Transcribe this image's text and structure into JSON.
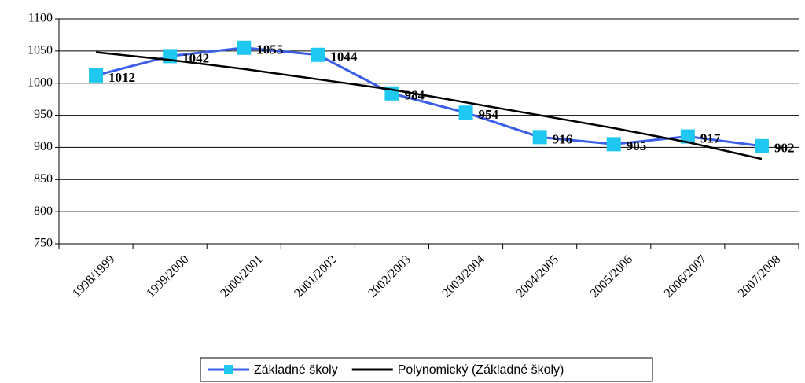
{
  "chart_data": {
    "type": "line",
    "categories": [
      "1998/1999",
      "1999/2000",
      "2000/2001",
      "2001/2002",
      "2002/2003",
      "2003/2004",
      "2004/2005",
      "2005/2006",
      "2006/2007",
      "2007/2008"
    ],
    "series": [
      {
        "name": "Základné školy",
        "color": "#3b5ee6",
        "marker_color": "#1ec8f0",
        "values": [
          1012,
          1042,
          1055,
          1044,
          984,
          954,
          916,
          905,
          917,
          902
        ],
        "data_labels": true
      },
      {
        "name": "Polynomický (Základné školy)",
        "color": "#000000",
        "values": [
          1048,
          1036,
          1022,
          1006,
          990,
          970,
          950,
          930,
          908,
          882
        ]
      }
    ],
    "ylim": [
      750,
      1100
    ],
    "yticks": [
      750,
      800,
      850,
      900,
      950,
      1000,
      1050,
      1100
    ],
    "grid": true,
    "legend": "bottom"
  }
}
